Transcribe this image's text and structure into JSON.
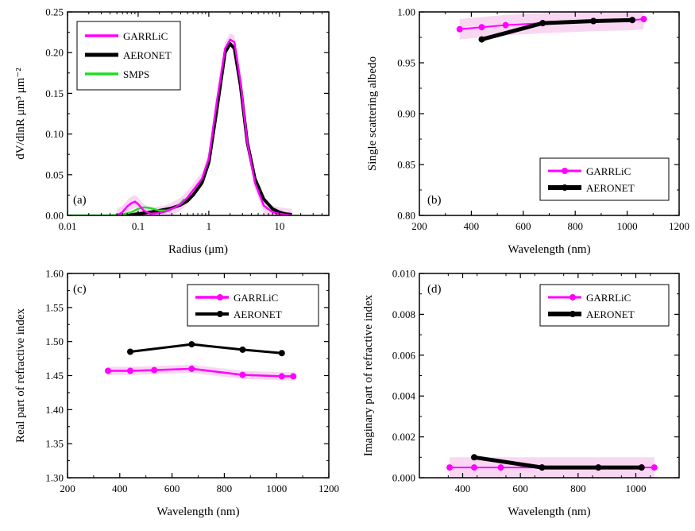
{
  "colors": {
    "garrlic": "#ff00ff",
    "garrlic_band": "#f7c6ee",
    "aeronet": "#000000",
    "smps": "#22dd22"
  },
  "chart_data": [
    {
      "id": "a",
      "type": "line",
      "panel_label": "(a)",
      "xlabel": "Radius  (μm)",
      "ylabel": "dV/dlnR  μm³ μm⁻²",
      "xscale": "log",
      "xlim": [
        0.01,
        50
      ],
      "ylim": [
        0,
        0.25
      ],
      "xticks": [
        0.01,
        0.1,
        1,
        10
      ],
      "xtick_labels": [
        "0.01",
        "0.1",
        "1",
        "10"
      ],
      "yticks": [
        0,
        0.05,
        0.1,
        0.15,
        0.2,
        0.25
      ],
      "ytick_labels": [
        "0.00",
        "0.05",
        "0.10",
        "0.15",
        "0.20",
        "0.25"
      ],
      "legend_position": "top-left",
      "series": [
        {
          "name": "GARRLiC",
          "color": "#ff00ff",
          "width": 2.5,
          "markers": false,
          "band": 0.008,
          "x": [
            0.05,
            0.06,
            0.07,
            0.08,
            0.09,
            0.1,
            0.12,
            0.15,
            0.2,
            0.25,
            0.3,
            0.4,
            0.5,
            0.6,
            0.8,
            1,
            1.3,
            1.7,
            2,
            2.3,
            2.8,
            3.5,
            4.5,
            6,
            8,
            10,
            12,
            15
          ],
          "y": [
            0,
            0.004,
            0.011,
            0.015,
            0.017,
            0.014,
            0.006,
            0.002,
            0.003,
            0.005,
            0.008,
            0.014,
            0.022,
            0.031,
            0.045,
            0.07,
            0.14,
            0.205,
            0.216,
            0.213,
            0.165,
            0.09,
            0.04,
            0.012,
            0.004,
            0.002,
            0.001,
            0.0
          ]
        },
        {
          "name": "AERONET",
          "color": "#000000",
          "width": 4,
          "markers": false,
          "x": [
            0.05,
            0.08,
            0.1,
            0.15,
            0.2,
            0.3,
            0.4,
            0.5,
            0.6,
            0.8,
            1,
            1.3,
            1.7,
            2,
            2.3,
            2.8,
            3.5,
            4.5,
            6,
            8,
            10,
            12,
            15
          ],
          "y": [
            0,
            0.001,
            0.002,
            0.004,
            0.006,
            0.009,
            0.013,
            0.018,
            0.025,
            0.04,
            0.065,
            0.13,
            0.2,
            0.211,
            0.205,
            0.16,
            0.09,
            0.045,
            0.02,
            0.008,
            0.004,
            0.002,
            0.001
          ]
        },
        {
          "name": "SMPS",
          "color": "#22dd22",
          "width": 2.5,
          "markers": false,
          "x": [
            0.01,
            0.02,
            0.04,
            0.06,
            0.08,
            0.1,
            0.12,
            0.15,
            0.2,
            0.25,
            0.3,
            0.35,
            0.4,
            0.45
          ],
          "y": [
            0,
            0,
            0,
            0.001,
            0.004,
            0.008,
            0.01,
            0.009,
            0.006,
            0.006,
            0.008,
            0.011,
            0.015,
            0.02
          ]
        }
      ]
    },
    {
      "id": "b",
      "type": "line",
      "panel_label": "(b)",
      "xlabel": "Wavelength  (nm)",
      "ylabel": "Single scattering albedo",
      "xlim": [
        200,
        1200
      ],
      "ylim": [
        0.8,
        1.0
      ],
      "xticks": [
        200,
        400,
        600,
        800,
        1000,
        1200
      ],
      "xtick_labels": [
        "200",
        "400",
        "600",
        "800",
        "1000",
        "1200"
      ],
      "yticks": [
        0.8,
        0.85,
        0.9,
        0.95,
        1.0
      ],
      "ytick_labels": [
        "0.80",
        "0.85",
        "0.90",
        "0.95",
        "1.00"
      ],
      "legend_position": "bottom-right",
      "series": [
        {
          "name": "GARRLiC",
          "color": "#ff00ff",
          "width": 2,
          "markers": true,
          "band": 0.01,
          "x": [
            355,
            440,
            532,
            675,
            870,
            1020,
            1064
          ],
          "y": [
            0.983,
            0.985,
            0.987,
            0.989,
            0.991,
            0.992,
            0.993
          ]
        },
        {
          "name": "AERONET",
          "color": "#000000",
          "width": 5,
          "markers": true,
          "x": [
            440,
            675,
            870,
            1020
          ],
          "y": [
            0.973,
            0.989,
            0.991,
            0.992
          ]
        }
      ]
    },
    {
      "id": "c",
      "type": "line",
      "panel_label": "(c)",
      "xlabel": "Wavelength  (nm)",
      "ylabel": "Real part of refractive index",
      "xlim": [
        200,
        1200
      ],
      "ylim": [
        1.3,
        1.6
      ],
      "xticks": [
        200,
        400,
        600,
        800,
        1000,
        1200
      ],
      "xtick_labels": [
        "200",
        "400",
        "600",
        "800",
        "1000",
        "1200"
      ],
      "yticks": [
        1.3,
        1.35,
        1.4,
        1.45,
        1.5,
        1.55,
        1.6
      ],
      "ytick_labels": [
        "1.30",
        "1.35",
        "1.40",
        "1.45",
        "1.50",
        "1.55",
        "1.60"
      ],
      "legend_position": "top-right",
      "series": [
        {
          "name": "GARRLiC",
          "color": "#ff00ff",
          "width": 2.5,
          "markers": true,
          "band": 0.006,
          "x": [
            355,
            440,
            532,
            675,
            870,
            1020,
            1064
          ],
          "y": [
            1.457,
            1.457,
            1.458,
            1.46,
            1.451,
            1.449,
            1.449
          ]
        },
        {
          "name": "AERONET",
          "color": "#000000",
          "width": 3,
          "markers": true,
          "x": [
            440,
            675,
            870,
            1020
          ],
          "y": [
            1.485,
            1.496,
            1.488,
            1.483
          ]
        }
      ]
    },
    {
      "id": "d",
      "type": "line",
      "panel_label": "(d)",
      "xlabel": "Wavelength  (nm)",
      "ylabel": "Imaginary part of refractive index",
      "xlim": [
        250,
        1150
      ],
      "ylim": [
        0,
        0.01
      ],
      "xticks": [
        400,
        600,
        800,
        1000
      ],
      "xtick_labels": [
        "400",
        "600",
        "800",
        "1000"
      ],
      "yticks": [
        0,
        0.002,
        0.004,
        0.006,
        0.008,
        0.01
      ],
      "ytick_labels": [
        "0.000",
        "0.002",
        "0.004",
        "0.006",
        "0.008",
        "0.010"
      ],
      "legend_position": "top-right",
      "series": [
        {
          "name": "GARRLiC",
          "color": "#ff00ff",
          "width": 2,
          "markers": true,
          "band": 0.0005,
          "x": [
            355,
            440,
            532,
            675,
            870,
            1020,
            1064
          ],
          "y": [
            0.0005,
            0.0005,
            0.0005,
            0.0005,
            0.0005,
            0.0005,
            0.0005
          ]
        },
        {
          "name": "AERONET",
          "color": "#000000",
          "width": 5,
          "markers": true,
          "x": [
            440,
            675,
            870,
            1020
          ],
          "y": [
            0.001,
            0.0005,
            0.0005,
            0.0005
          ]
        }
      ]
    }
  ]
}
